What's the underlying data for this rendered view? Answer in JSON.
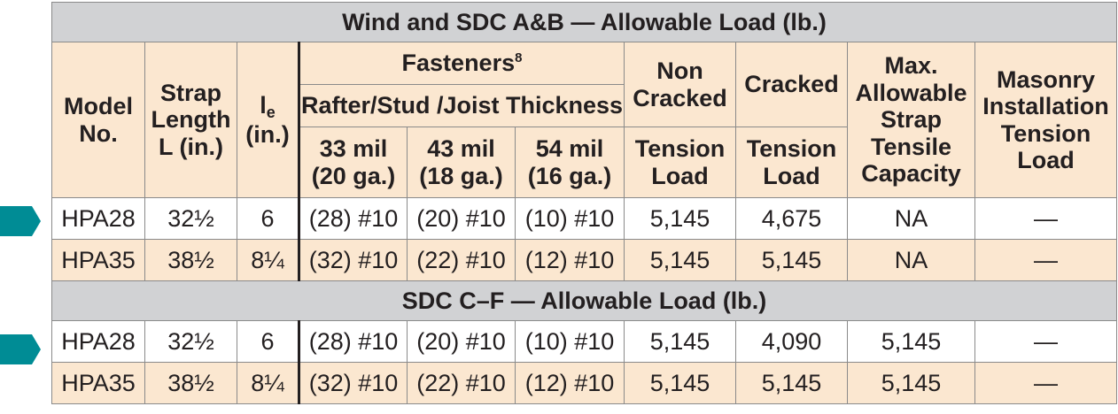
{
  "section1": {
    "title": "Wind and SDC A&B — Allowable Load (lb.)"
  },
  "section2": {
    "title": "SDC C–F — Allowable Load (lb.)"
  },
  "headers": {
    "model": "Model No.",
    "strap_length": "Strap Length L (in.)",
    "le_main": "l",
    "le_sub": "e",
    "le_unit": "(in.)",
    "fasteners": "Fasteners",
    "fasteners_sup": "8",
    "thickness": "Rafter/Stud /Joist Thickness",
    "t33": "33 mil (20 ga.)",
    "t43": "43 mil (18 ga.)",
    "t54": "54 mil (16 ga.)",
    "noncracked": "Non Cracked",
    "noncracked_sub": "Tension Load",
    "cracked": "Cracked",
    "cracked_sub": "Tension Load",
    "max_strap": "Max. Allowable Strap Tensile Capacity",
    "masonry": "Masonry Installation Tension Load"
  },
  "rows_wind": [
    {
      "model": "HPA28",
      "length": "32½",
      "le": "6",
      "f33": "(28) #10",
      "f43": "(20) #10",
      "f54": "(10) #10",
      "noncracked": "5,145",
      "cracked": "4,675",
      "max": "NA",
      "masonry": "—"
    },
    {
      "model": "HPA35",
      "length": "38½",
      "le": "8¼",
      "f33": "(32) #10",
      "f43": "(22) #10",
      "f54": "(12) #10",
      "noncracked": "5,145",
      "cracked": "5,145",
      "max": "NA",
      "masonry": "—"
    }
  ],
  "rows_sdc": [
    {
      "model": "HPA28",
      "length": "32½",
      "le": "6",
      "f33": "(28) #10",
      "f43": "(20) #10",
      "f54": "(10) #10",
      "noncracked": "5,145",
      "cracked": "4,090",
      "max": "5,145",
      "masonry": "—"
    },
    {
      "model": "HPA35",
      "length": "38½",
      "le": "8¼",
      "f33": "(32) #10",
      "f43": "(22) #10",
      "f54": "(12) #10",
      "noncracked": "5,145",
      "cracked": "5,145",
      "max": "5,145",
      "masonry": "—"
    }
  ],
  "colors": {
    "marker": "#008c95",
    "header_bg": "#fbe7d0",
    "section_bg": "#d1d2d4"
  },
  "icons": {
    "row_marker": "arrow-marker-icon"
  }
}
